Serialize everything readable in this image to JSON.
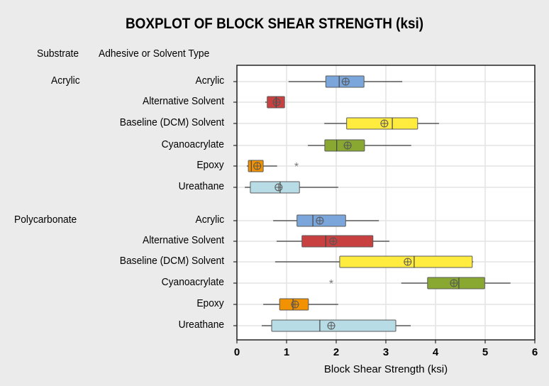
{
  "chart_data": {
    "type": "boxplot",
    "title": "BOXPLOT OF BLOCK SHEAR STRENGTH (ksi)",
    "column_headers": [
      "Substrate",
      "Adhesive or Solvent Type"
    ],
    "xlabel": "Block Shear Strength (ksi)",
    "xlim": [
      0,
      6
    ],
    "xticks": [
      "0",
      "1",
      "2",
      "3",
      "4",
      "5",
      "6"
    ],
    "grid": true,
    "groups": [
      {
        "substrate": "Acrylic",
        "items": [
          {
            "type": "Acrylic",
            "color": "#7aa6dc",
            "min": 1.04,
            "q1": 1.79,
            "median": 2.06,
            "mean": 2.19,
            "q3": 2.56,
            "max": 3.33,
            "outliers": []
          },
          {
            "type": "Alternative Solvent",
            "color": "#c94040",
            "min": 0.57,
            "q1": 0.61,
            "median": 0.79,
            "mean": 0.8,
            "q3": 0.96,
            "max": 0.96,
            "outliers": []
          },
          {
            "type": "Baseline (DCM) Solvent",
            "color": "#ffec3f",
            "min": 1.76,
            "q1": 2.21,
            "median": 3.13,
            "mean": 2.97,
            "q3": 3.64,
            "max": 4.07,
            "outliers": []
          },
          {
            "type": "Cyanoacrylate",
            "color": "#88a832",
            "min": 1.43,
            "q1": 1.77,
            "median": 2.01,
            "mean": 2.23,
            "q3": 2.57,
            "max": 3.51,
            "outliers": []
          },
          {
            "type": "Epoxy",
            "color": "#f39200",
            "min": 0.2,
            "q1": 0.23,
            "median": 0.29,
            "mean": 0.41,
            "q3": 0.53,
            "max": 0.81,
            "outliers": [
              1.2
            ]
          },
          {
            "type": "Ureathane",
            "color": "#b8dce6",
            "min": 0.16,
            "q1": 0.27,
            "median": 0.87,
            "mean": 0.84,
            "q3": 1.26,
            "max": 2.04,
            "outliers": []
          }
        ]
      },
      {
        "substrate": "Polycarbonate",
        "items": [
          {
            "type": "Acrylic",
            "color": "#7aa6dc",
            "min": 0.73,
            "q1": 1.21,
            "median": 1.53,
            "mean": 1.67,
            "q3": 2.19,
            "max": 2.86,
            "outliers": []
          },
          {
            "type": "Alternative Solvent",
            "color": "#c94040",
            "min": 0.8,
            "q1": 1.31,
            "median": 1.79,
            "mean": 1.94,
            "q3": 2.74,
            "max": 3.07,
            "outliers": []
          },
          {
            "type": "Baseline (DCM) Solvent",
            "color": "#ffec3f",
            "min": 0.77,
            "q1": 2.07,
            "median": 3.57,
            "mean": 3.44,
            "q3": 4.74,
            "max": 4.76,
            "outliers": []
          },
          {
            "type": "Cyanoacrylate",
            "color": "#88a832",
            "min": 3.31,
            "q1": 3.84,
            "median": 4.47,
            "mean": 4.37,
            "q3": 4.99,
            "max": 5.51,
            "outliers": [
              1.9
            ]
          },
          {
            "type": "Epoxy",
            "color": "#f39200",
            "min": 0.53,
            "q1": 0.86,
            "median": 1.13,
            "mean": 1.17,
            "q3": 1.44,
            "max": 2.04,
            "outliers": []
          },
          {
            "type": "Ureathane",
            "color": "#b8dce6",
            "min": 0.5,
            "q1": 0.7,
            "median": 1.67,
            "mean": 1.9,
            "q3": 3.2,
            "max": 3.5,
            "outliers": []
          }
        ]
      }
    ]
  }
}
